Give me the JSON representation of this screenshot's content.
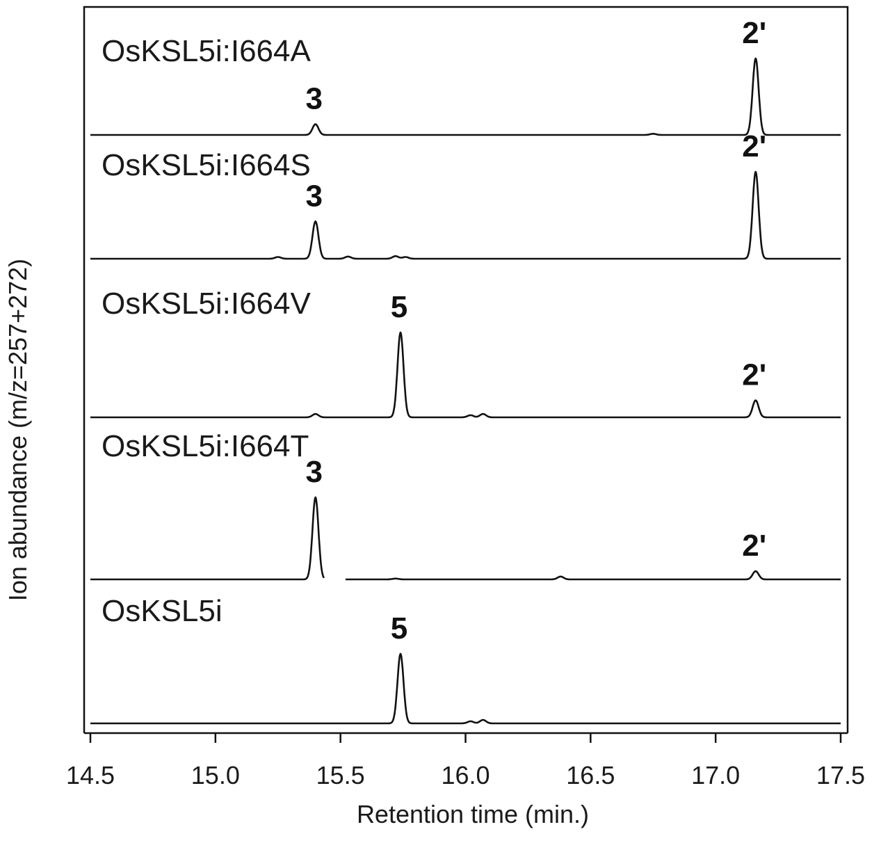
{
  "chart_data": {
    "type": "line",
    "title": "",
    "xlabel": "Retention time (min.)",
    "ylabel": "Ion abundance (m/z=257+272)",
    "xlim": [
      14.5,
      17.5
    ],
    "xticks": [
      "14.5",
      "15.0",
      "15.5",
      "16.0",
      "16.5",
      "17.0",
      "17.5"
    ],
    "grid": false,
    "legend": "none",
    "series": [
      {
        "name": "OsKSL5i:I664A",
        "peaks": [
          {
            "label": "3",
            "x": 15.4,
            "height": 0.14
          },
          {
            "label": "2'",
            "x": 17.16,
            "height": 1.0
          }
        ],
        "minor": [
          {
            "x": 16.75,
            "height": 0.015
          }
        ]
      },
      {
        "name": "OsKSL5i:I664S",
        "peaks": [
          {
            "label": "3",
            "x": 15.4,
            "height": 0.43
          },
          {
            "label": "2'",
            "x": 17.16,
            "height": 1.0
          }
        ],
        "minor": [
          {
            "x": 15.25,
            "height": 0.02
          },
          {
            "x": 15.53,
            "height": 0.025
          },
          {
            "x": 15.72,
            "height": 0.03
          },
          {
            "x": 15.76,
            "height": 0.02
          }
        ]
      },
      {
        "name": "OsKSL5i:I664V",
        "peaks": [
          {
            "label": "5",
            "x": 15.74,
            "height": 1.0
          },
          {
            "label": "2'",
            "x": 17.16,
            "height": 0.2
          }
        ],
        "minor": [
          {
            "x": 15.4,
            "height": 0.04
          },
          {
            "x": 16.02,
            "height": 0.025
          },
          {
            "x": 16.07,
            "height": 0.04
          }
        ]
      },
      {
        "name": "OsKSL5i:I664T",
        "peaks": [
          {
            "label": "3",
            "x": 15.4,
            "height": 1.0
          },
          {
            "label": "2'",
            "x": 17.16,
            "height": 0.1
          }
        ],
        "minor": [
          {
            "x": 15.72,
            "height": 0.01
          },
          {
            "x": 16.38,
            "height": 0.035
          }
        ]
      },
      {
        "name": "OsKSL5i",
        "peaks": [
          {
            "label": "5",
            "x": 15.74,
            "height": 1.0
          }
        ],
        "minor": [
          {
            "x": 16.02,
            "height": 0.03
          },
          {
            "x": 16.07,
            "height": 0.05
          }
        ]
      }
    ]
  }
}
